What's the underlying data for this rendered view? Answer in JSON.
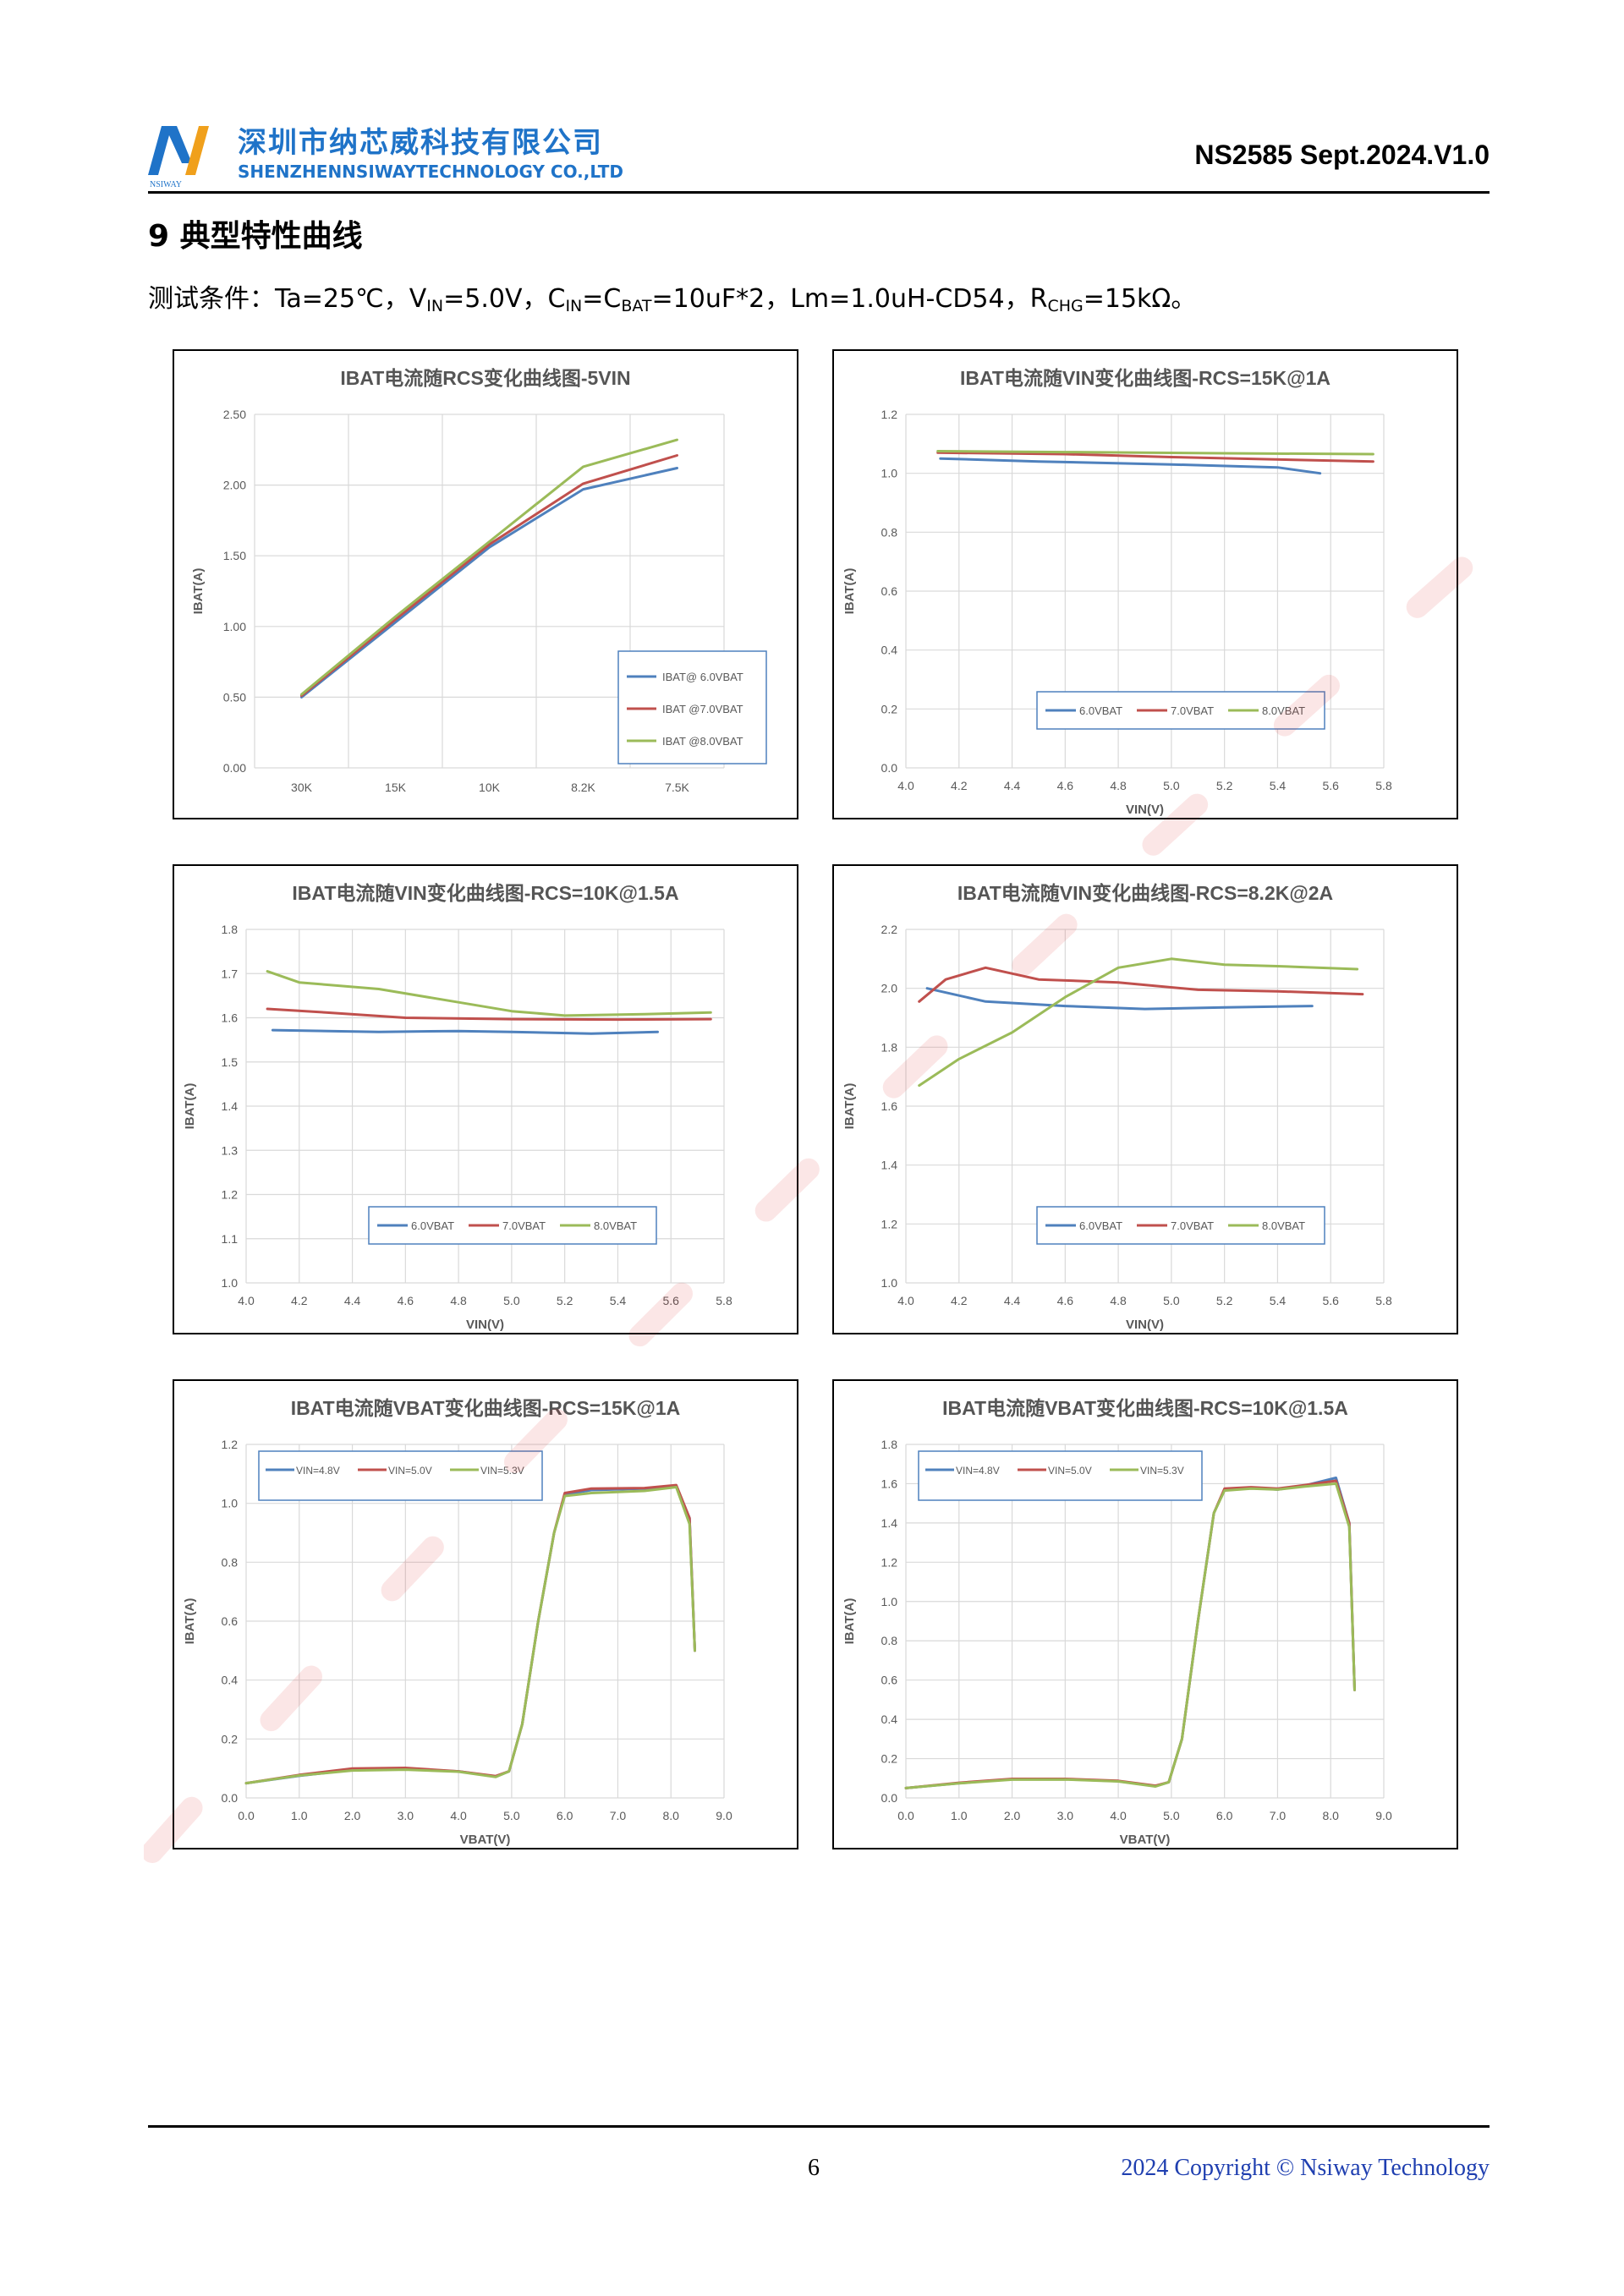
{
  "header": {
    "company_cn": "深圳市纳芯威科技有限公司",
    "company_en": "SHENZHENNSIWAYTECHNOLOGY CO.,LTD",
    "logo_text": "NSIWAY",
    "doc_id": "NS2585 Sept.2024.V1.0"
  },
  "section": {
    "title": "9  典型特性曲线",
    "cond_prefix": "测试条件：Ta=25℃，V",
    "cond_vin_sub": "IN",
    "cond_part2": "=5.0V，C",
    "cond_cin_sub": "IN",
    "cond_part3": "=C",
    "cond_cbat_sub": "BAT",
    "cond_part4": "=10uF*2，Lm=1.0uH-CD54，R",
    "cond_rchg_sub": "CHG",
    "cond_part5": "=15kΩ。"
  },
  "colors": {
    "s1": "#4f81bd",
    "s2": "#c0504d",
    "s3": "#9bbb59",
    "brand": "#1f73c8"
  },
  "chart_data": [
    {
      "type": "line",
      "title": "IBAT电流随RCS变化曲线图-5VIN",
      "xlabel": "",
      "ylabel": "IBAT(A)",
      "categories": [
        "30K",
        "15K",
        "10K",
        "8.2K",
        "7.5K"
      ],
      "ylim": [
        0,
        2.5
      ],
      "yticks": [
        "0.00",
        "0.50",
        "1.00",
        "1.50",
        "2.00",
        "2.50"
      ],
      "legend": "bottom-right",
      "series": [
        {
          "name": "IBAT@ 6.0VBAT",
          "values": [
            0.5,
            1.03,
            1.56,
            1.97,
            2.12
          ]
        },
        {
          "name": "IBAT @7.0VBAT",
          "values": [
            0.51,
            1.05,
            1.58,
            2.01,
            2.21
          ]
        },
        {
          "name": "IBAT @8.0VBAT",
          "values": [
            0.52,
            1.07,
            1.6,
            2.13,
            2.32
          ]
        }
      ]
    },
    {
      "type": "line",
      "title": "IBAT电流随VIN变化曲线图-RCS=15K@1A",
      "xlabel": "VIN(V)",
      "ylabel": "IBAT(A)",
      "xlim": [
        4.0,
        5.8
      ],
      "xticks": [
        "4.0",
        "4.2",
        "4.4",
        "4.6",
        "4.8",
        "5.0",
        "5.2",
        "5.4",
        "5.6",
        "5.8"
      ],
      "ylim": [
        0,
        1.2
      ],
      "yticks": [
        "0.0",
        "0.2",
        "0.4",
        "0.6",
        "0.8",
        "1.0",
        "1.2"
      ],
      "legend": "bottom-center",
      "series": [
        {
          "name": "6.0VBAT",
          "points": [
            [
              4.13,
              1.05
            ],
            [
              4.5,
              1.04
            ],
            [
              5.0,
              1.03
            ],
            [
              5.4,
              1.02
            ],
            [
              5.56,
              1.0
            ]
          ]
        },
        {
          "name": "7.0VBAT",
          "points": [
            [
              4.12,
              1.07
            ],
            [
              4.6,
              1.065
            ],
            [
              5.0,
              1.055
            ],
            [
              5.5,
              1.045
            ],
            [
              5.76,
              1.04
            ]
          ]
        },
        {
          "name": "8.0VBAT",
          "points": [
            [
              4.12,
              1.075
            ],
            [
              4.6,
              1.072
            ],
            [
              5.2,
              1.068
            ],
            [
              5.76,
              1.065
            ]
          ]
        }
      ]
    },
    {
      "type": "line",
      "title": "IBAT电流随VIN变化曲线图-RCS=10K@1.5A",
      "xlabel": "VIN(V)",
      "ylabel": "IBAT(A)",
      "xlim": [
        4.0,
        5.8
      ],
      "xticks": [
        "4.0",
        "4.2",
        "4.4",
        "4.6",
        "4.8",
        "5.0",
        "5.2",
        "5.4",
        "5.6",
        "5.8"
      ],
      "ylim": [
        1.0,
        1.8
      ],
      "yticks": [
        "1.0",
        "1.1",
        "1.2",
        "1.3",
        "1.4",
        "1.5",
        "1.6",
        "1.7",
        "1.8"
      ],
      "legend": "bottom-center",
      "series": [
        {
          "name": "6.0VBAT",
          "points": [
            [
              4.1,
              1.572
            ],
            [
              4.5,
              1.568
            ],
            [
              4.8,
              1.57
            ],
            [
              5.0,
              1.568
            ],
            [
              5.3,
              1.564
            ],
            [
              5.55,
              1.568
            ]
          ]
        },
        {
          "name": "7.0VBAT",
          "points": [
            [
              4.08,
              1.62
            ],
            [
              4.3,
              1.612
            ],
            [
              4.6,
              1.6
            ],
            [
              5.0,
              1.597
            ],
            [
              5.4,
              1.596
            ],
            [
              5.75,
              1.597
            ]
          ]
        },
        {
          "name": "8.0VBAT",
          "points": [
            [
              4.08,
              1.705
            ],
            [
              4.2,
              1.68
            ],
            [
              4.5,
              1.665
            ],
            [
              4.8,
              1.635
            ],
            [
              5.0,
              1.615
            ],
            [
              5.2,
              1.605
            ],
            [
              5.5,
              1.608
            ],
            [
              5.75,
              1.612
            ]
          ]
        }
      ]
    },
    {
      "type": "line",
      "title": "IBAT电流随VIN变化曲线图-RCS=8.2K@2A",
      "xlabel": "VIN(V)",
      "ylabel": "IBAT(A)",
      "xlim": [
        4.0,
        5.8
      ],
      "xticks": [
        "4.0",
        "4.2",
        "4.4",
        "4.6",
        "4.8",
        "5.0",
        "5.2",
        "5.4",
        "5.6",
        "5.8"
      ],
      "ylim": [
        1.0,
        2.2
      ],
      "yticks": [
        "1.0",
        "1.2",
        "1.4",
        "1.6",
        "1.8",
        "2.0",
        "2.2"
      ],
      "legend": "bottom-center",
      "series": [
        {
          "name": "6.0VBAT",
          "points": [
            [
              4.08,
              2.0
            ],
            [
              4.3,
              1.955
            ],
            [
              4.6,
              1.94
            ],
            [
              4.9,
              1.93
            ],
            [
              5.2,
              1.935
            ],
            [
              5.53,
              1.94
            ]
          ]
        },
        {
          "name": "7.0VBAT",
          "points": [
            [
              4.05,
              1.955
            ],
            [
              4.15,
              2.03
            ],
            [
              4.3,
              2.07
            ],
            [
              4.5,
              2.03
            ],
            [
              4.8,
              2.02
            ],
            [
              5.1,
              1.995
            ],
            [
              5.4,
              1.99
            ],
            [
              5.72,
              1.98
            ]
          ]
        },
        {
          "name": "8.0VBAT",
          "points": [
            [
              4.05,
              1.67
            ],
            [
              4.2,
              1.76
            ],
            [
              4.4,
              1.85
            ],
            [
              4.6,
              1.97
            ],
            [
              4.8,
              2.07
            ],
            [
              5.0,
              2.1
            ],
            [
              5.2,
              2.08
            ],
            [
              5.4,
              2.075
            ],
            [
              5.7,
              2.065
            ]
          ]
        }
      ]
    },
    {
      "type": "line",
      "title": "IBAT电流随VBAT变化曲线图-RCS=15K@1A",
      "xlabel": "VBAT(V)",
      "ylabel": "IBAT(A)",
      "xlim": [
        0,
        9.0
      ],
      "xticks": [
        "0.0",
        "1.0",
        "2.0",
        "3.0",
        "4.0",
        "5.0",
        "6.0",
        "7.0",
        "8.0",
        "9.0"
      ],
      "ylim": [
        0,
        1.2
      ],
      "yticks": [
        "0.0",
        "0.2",
        "0.4",
        "0.6",
        "0.8",
        "1.0",
        "1.2"
      ],
      "legend": "top-left",
      "series": [
        {
          "name": "VIN=4.8V",
          "points": [
            [
              0,
              0.05
            ],
            [
              1,
              0.075
            ],
            [
              2,
              0.095
            ],
            [
              3,
              0.098
            ],
            [
              4,
              0.09
            ],
            [
              4.7,
              0.072
            ],
            [
              4.95,
              0.09
            ],
            [
              5.2,
              0.25
            ],
            [
              5.5,
              0.6
            ],
            [
              5.8,
              0.9
            ],
            [
              6.0,
              1.03
            ],
            [
              6.5,
              1.045
            ],
            [
              7.5,
              1.05
            ],
            [
              8.1,
              1.06
            ],
            [
              8.35,
              0.95
            ],
            [
              8.45,
              0.5
            ]
          ]
        },
        {
          "name": "VIN=5.0V",
          "points": [
            [
              0,
              0.05
            ],
            [
              1,
              0.078
            ],
            [
              2,
              0.1
            ],
            [
              3,
              0.102
            ],
            [
              4,
              0.09
            ],
            [
              4.7,
              0.074
            ],
            [
              4.95,
              0.09
            ],
            [
              5.2,
              0.25
            ],
            [
              5.5,
              0.6
            ],
            [
              5.8,
              0.9
            ],
            [
              6.0,
              1.035
            ],
            [
              6.5,
              1.05
            ],
            [
              7.5,
              1.052
            ],
            [
              8.1,
              1.062
            ],
            [
              8.35,
              0.95
            ],
            [
              8.45,
              0.5
            ]
          ]
        },
        {
          "name": "VIN=5.3V",
          "points": [
            [
              0,
              0.05
            ],
            [
              1,
              0.076
            ],
            [
              2,
              0.093
            ],
            [
              3,
              0.096
            ],
            [
              4,
              0.089
            ],
            [
              4.7,
              0.071
            ],
            [
              4.95,
              0.09
            ],
            [
              5.2,
              0.25
            ],
            [
              5.5,
              0.6
            ],
            [
              5.8,
              0.9
            ],
            [
              6.0,
              1.025
            ],
            [
              6.5,
              1.035
            ],
            [
              7.5,
              1.042
            ],
            [
              8.1,
              1.055
            ],
            [
              8.35,
              0.93
            ],
            [
              8.45,
              0.5
            ]
          ]
        }
      ]
    },
    {
      "type": "line",
      "title": "IBAT电流随VBAT变化曲线图-RCS=10K@1.5A",
      "xlabel": "VBAT(V)",
      "ylabel": "IBAT(A)",
      "xlim": [
        0,
        9.0
      ],
      "xticks": [
        "0.0",
        "1.0",
        "2.0",
        "3.0",
        "4.0",
        "5.0",
        "6.0",
        "7.0",
        "8.0",
        "9.0"
      ],
      "ylim": [
        0,
        1.8
      ],
      "yticks": [
        "0.0",
        "0.2",
        "0.4",
        "0.6",
        "0.8",
        "1.0",
        "1.2",
        "1.4",
        "1.6",
        "1.8"
      ],
      "legend": "top-left",
      "series": [
        {
          "name": "VIN=4.8V",
          "points": [
            [
              0,
              0.05
            ],
            [
              1,
              0.075
            ],
            [
              2,
              0.095
            ],
            [
              3,
              0.095
            ],
            [
              4,
              0.085
            ],
            [
              4.7,
              0.06
            ],
            [
              4.95,
              0.08
            ],
            [
              5.2,
              0.3
            ],
            [
              5.5,
              0.9
            ],
            [
              5.8,
              1.45
            ],
            [
              6.0,
              1.57
            ],
            [
              6.5,
              1.58
            ],
            [
              7.0,
              1.57
            ],
            [
              7.5,
              1.59
            ],
            [
              8.1,
              1.63
            ],
            [
              8.35,
              1.4
            ],
            [
              8.45,
              0.55
            ]
          ]
        },
        {
          "name": "VIN=5.0V",
          "points": [
            [
              0,
              0.05
            ],
            [
              1,
              0.077
            ],
            [
              2,
              0.097
            ],
            [
              3,
              0.097
            ],
            [
              4,
              0.087
            ],
            [
              4.7,
              0.062
            ],
            [
              4.95,
              0.08
            ],
            [
              5.2,
              0.3
            ],
            [
              5.5,
              0.9
            ],
            [
              5.8,
              1.45
            ],
            [
              6.0,
              1.575
            ],
            [
              6.5,
              1.582
            ],
            [
              7.0,
              1.575
            ],
            [
              7.5,
              1.592
            ],
            [
              8.1,
              1.615
            ],
            [
              8.35,
              1.4
            ],
            [
              8.45,
              0.55
            ]
          ]
        },
        {
          "name": "VIN=5.3V",
          "points": [
            [
              0,
              0.05
            ],
            [
              1,
              0.074
            ],
            [
              2,
              0.093
            ],
            [
              3,
              0.094
            ],
            [
              4,
              0.084
            ],
            [
              4.7,
              0.058
            ],
            [
              4.95,
              0.08
            ],
            [
              5.2,
              0.3
            ],
            [
              5.5,
              0.9
            ],
            [
              5.8,
              1.45
            ],
            [
              6.0,
              1.565
            ],
            [
              6.5,
              1.575
            ],
            [
              7.0,
              1.57
            ],
            [
              7.5,
              1.585
            ],
            [
              8.1,
              1.6
            ],
            [
              8.35,
              1.38
            ],
            [
              8.45,
              0.55
            ]
          ]
        }
      ]
    }
  ],
  "footer": {
    "page": "6",
    "copyright": "2024 Copyright © Nsiway Technology"
  }
}
